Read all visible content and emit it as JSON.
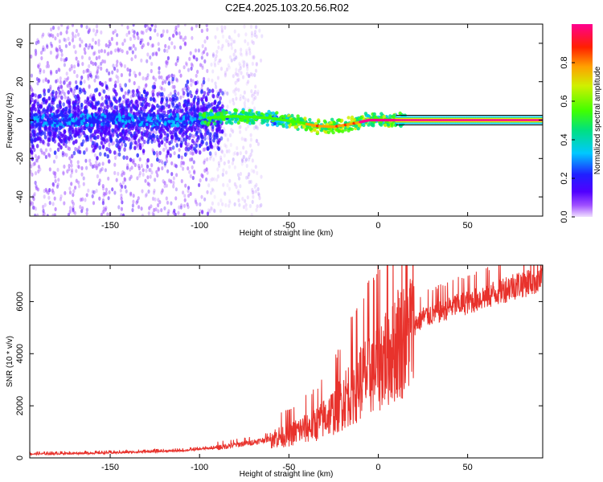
{
  "title": "C2E4.2025.103.20.56.R02",
  "chart_data": [
    {
      "type": "heatmap",
      "name": "spectrogram",
      "xlabel": "Height of straight line (km)",
      "ylabel": "Frequency (Hz)",
      "xlim": [
        -195,
        92
      ],
      "ylim": [
        -50,
        50
      ],
      "xticks": [
        -150,
        -100,
        -50,
        0,
        50
      ],
      "xtick_labels": [
        "-150",
        "-100",
        "-50",
        "0",
        "50"
      ],
      "yticks": [
        -40,
        -20,
        0,
        20,
        40
      ],
      "ytick_labels": [
        "-40",
        "-20",
        "0",
        "20",
        "40"
      ],
      "ridge_center": [
        {
          "x": -100,
          "y": 1
        },
        {
          "x": -80,
          "y": 2
        },
        {
          "x": -60,
          "y": 1
        },
        {
          "x": -45,
          "y": -1
        },
        {
          "x": -35,
          "y": -3
        },
        {
          "x": -25,
          "y": -3.5
        },
        {
          "x": -15,
          "y": -2
        },
        {
          "x": -5,
          "y": 0
        },
        {
          "x": 10,
          "y": 0
        },
        {
          "x": 92,
          "y": 0
        }
      ],
      "noise_region": {
        "x_from": -195,
        "x_to": -95
      },
      "constant_band": {
        "x_from": 10,
        "x_to": 92,
        "y": 0
      },
      "colorbar": {
        "label": "Normalized spectral amplitude",
        "range": [
          0,
          1
        ],
        "ticks": [
          0,
          0.2,
          0.4,
          0.6,
          0.8
        ],
        "tick_labels": [
          "0.0",
          "0.2",
          "0.4",
          "0.6",
          "0.8"
        ]
      }
    },
    {
      "type": "line",
      "name": "snr",
      "xlabel": "Height of straight line (km)",
      "ylabel": "SNR (10 * v/v)",
      "xlim": [
        -195,
        92
      ],
      "ylim": [
        0,
        7400
      ],
      "xticks": [
        -150,
        -100,
        -50,
        0,
        50
      ],
      "xtick_labels": [
        "-150",
        "-100",
        "-50",
        "0",
        "50"
      ],
      "yticks": [
        0,
        2000,
        4000,
        6000
      ],
      "ytick_labels": [
        "0",
        "2000",
        "4000",
        "6000"
      ],
      "color": "#e8322c",
      "trend": [
        {
          "x": -195,
          "y": 150
        },
        {
          "x": -150,
          "y": 200
        },
        {
          "x": -110,
          "y": 280
        },
        {
          "x": -90,
          "y": 400
        },
        {
          "x": -70,
          "y": 600
        },
        {
          "x": -50,
          "y": 900
        },
        {
          "x": -35,
          "y": 1300
        },
        {
          "x": -25,
          "y": 1800
        },
        {
          "x": -15,
          "y": 2600
        },
        {
          "x": -5,
          "y": 3300
        },
        {
          "x": 5,
          "y": 4000
        },
        {
          "x": 15,
          "y": 4800
        },
        {
          "x": 25,
          "y": 5400
        },
        {
          "x": 40,
          "y": 5800
        },
        {
          "x": 60,
          "y": 6200
        },
        {
          "x": 75,
          "y": 6600
        },
        {
          "x": 92,
          "y": 6900
        }
      ]
    }
  ]
}
